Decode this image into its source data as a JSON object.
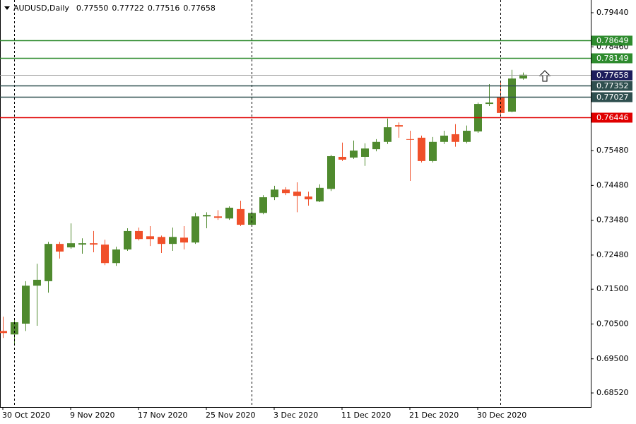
{
  "chart_data": {
    "type": "candlestick",
    "header": {
      "symbol": "AUDUSD,Daily",
      "values": [
        "0.77550",
        "0.77722",
        "0.77516",
        "0.77658"
      ]
    },
    "categories": [
      "30 Oct 2020",
      null,
      null,
      null,
      null,
      null,
      "9 Nov 2020",
      null,
      null,
      null,
      null,
      null,
      "17 Nov 2020",
      null,
      null,
      null,
      null,
      null,
      "25 Nov 2020",
      null,
      null,
      null,
      null,
      null,
      "3 Dec 2020",
      null,
      null,
      null,
      null,
      null,
      "11 Dec 2020",
      null,
      null,
      null,
      null,
      null,
      "21 Dec 2020",
      null,
      null,
      null,
      null,
      null,
      "30 Dec 2020",
      null,
      null,
      null,
      null
    ],
    "open": [
      0.703,
      0.702,
      0.7051,
      0.716,
      0.7173,
      0.728,
      0.727,
      0.7278,
      0.7282,
      0.7278,
      0.7225,
      0.7264,
      0.7317,
      0.7302,
      0.73,
      0.728,
      0.7298,
      0.7284,
      0.7359,
      0.7359,
      0.7353,
      0.738,
      0.7335,
      0.7369,
      0.7414,
      0.7436,
      0.743,
      0.7416,
      0.7402,
      0.7438,
      0.753,
      0.7528,
      0.753,
      0.7552,
      0.7573,
      0.7621,
      0.7581,
      0.7585,
      0.7518,
      0.7573,
      0.7595,
      0.7573,
      0.7603,
      0.7682,
      0.7702,
      0.766,
      0.7755
    ],
    "high": [
      0.7071,
      0.7063,
      0.7173,
      0.7223,
      0.7286,
      0.7286,
      0.7339,
      0.7296,
      0.7317,
      0.7292,
      0.7272,
      0.7325,
      0.7327,
      0.7331,
      0.7304,
      0.7327,
      0.7331,
      0.7369,
      0.7371,
      0.7377,
      0.7388,
      0.7404,
      0.738,
      0.742,
      0.7447,
      0.7443,
      0.7457,
      0.743,
      0.7451,
      0.7536,
      0.7571,
      0.7577,
      0.7569,
      0.7581,
      0.764,
      0.7629,
      0.7605,
      0.7591,
      0.7587,
      0.7605,
      0.7624,
      0.762,
      0.7686,
      0.7739,
      0.7747,
      0.778,
      0.77722
    ],
    "low": [
      0.701,
      0.6992,
      0.703,
      0.7045,
      0.714,
      0.7238,
      0.7266,
      0.7252,
      0.7256,
      0.7219,
      0.7217,
      0.726,
      0.729,
      0.7274,
      0.7254,
      0.726,
      0.7264,
      0.728,
      0.7325,
      0.7349,
      0.7349,
      0.7331,
      0.7331,
      0.7365,
      0.7406,
      0.742,
      0.7371,
      0.739,
      0.74,
      0.7432,
      0.7518,
      0.7524,
      0.7504,
      0.7546,
      0.7567,
      0.7585,
      0.7461,
      0.7514,
      0.7514,
      0.7567,
      0.7559,
      0.7569,
      0.7599,
      0.7676,
      0.7652,
      0.7658,
      0.77516
    ],
    "close": [
      0.7024,
      0.7055,
      0.716,
      0.7177,
      0.728,
      0.7258,
      0.7282,
      0.7282,
      0.7278,
      0.7225,
      0.7264,
      0.7317,
      0.7294,
      0.7294,
      0.728,
      0.73,
      0.7284,
      0.7359,
      0.7363,
      0.7355,
      0.7384,
      0.7335,
      0.7369,
      0.7414,
      0.7436,
      0.7426,
      0.7418,
      0.7408,
      0.7441,
      0.7532,
      0.7522,
      0.7548,
      0.7554,
      0.7573,
      0.7615,
      0.7617,
      0.7579,
      0.7518,
      0.7573,
      0.7591,
      0.7573,
      0.7605,
      0.7682,
      0.7686,
      0.7656,
      0.7755,
      0.77658
    ],
    "up_color": "#4f8a2e",
    "down_color": "#f0502a",
    "ylim": [
      0.68115,
      0.79805
    ],
    "yticks": [
      {
        "value": 0.7944,
        "label": "0.79440"
      },
      {
        "value": 0.7846,
        "label": "0.78460"
      },
      {
        "value": 0.7548,
        "label": "0.75480"
      },
      {
        "value": 0.7448,
        "label": "0.74480"
      },
      {
        "value": 0.7348,
        "label": "0.73480"
      },
      {
        "value": 0.7248,
        "label": "0.72480"
      },
      {
        "value": 0.715,
        "label": "0.71500"
      },
      {
        "value": 0.705,
        "label": "0.70500"
      },
      {
        "value": 0.695,
        "label": "0.69500"
      },
      {
        "value": 0.6852,
        "label": "0.68520"
      }
    ],
    "levels": [
      {
        "value": 0.78649,
        "color": "#2e8b2e"
      },
      {
        "value": 0.78149,
        "color": "#2e8b2e"
      },
      {
        "value": 0.77658,
        "color": "#1c1c5c",
        "line_color": "#a0a0a0"
      },
      {
        "value": 0.77352,
        "color": "#2f4f4f"
      },
      {
        "value": 0.77027,
        "color": "#2f4f4f"
      },
      {
        "value": 0.76446,
        "color": "#e00000"
      }
    ]
  }
}
